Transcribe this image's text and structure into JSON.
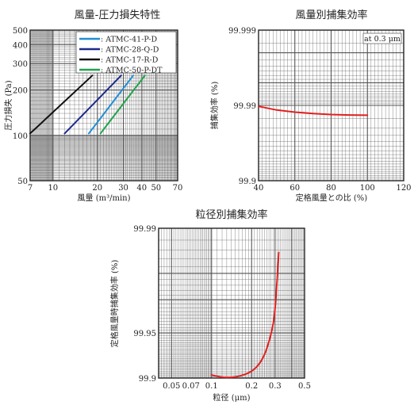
{
  "chart_data": [
    {
      "type": "line",
      "title": "風量-圧力損失特性",
      "xlabel": "風量 (m³/min)",
      "ylabel": "圧力損失 (Pa)",
      "x_scale": "log",
      "y_scale": "log",
      "xlim": [
        7,
        70
      ],
      "ylim": [
        50,
        500
      ],
      "x_ticks": [
        "7",
        "10",
        "20",
        "30",
        "40",
        "50",
        "70"
      ],
      "x_tick_values": [
        7,
        10,
        20,
        30,
        40,
        50,
        70
      ],
      "y_ticks": [
        "50",
        "100",
        "200",
        "300",
        "400",
        "500"
      ],
      "y_tick_values": [
        50,
        100,
        200,
        300,
        400,
        500
      ],
      "grid": true,
      "legend_position": "top-right",
      "series": [
        {
          "name": ": ATMC-41-P-D",
          "color": "#1e8fd6",
          "x": [
            17.5,
            35
          ],
          "y": [
            103,
            250
          ]
        },
        {
          "name": ": ATMC-28-Q-D",
          "color": "#1c2a8a",
          "x": [
            12,
            29
          ],
          "y": [
            103,
            250
          ]
        },
        {
          "name": ": ATMC-17-R-D",
          "color": "#111111",
          "x": [
            7,
            18.5
          ],
          "y": [
            103,
            250
          ]
        },
        {
          "name": ": ATMC-50-P-DT",
          "color": "#1fa34a",
          "x": [
            21,
            42
          ],
          "y": [
            103,
            250
          ]
        }
      ]
    },
    {
      "type": "line",
      "title": "風量別捕集効率",
      "xlabel": "定格風量との比 (%)",
      "ylabel": "捕集効率 (%)",
      "x_scale": "linear",
      "xlim": [
        40,
        120
      ],
      "ylim": [
        99.9,
        99.999
      ],
      "x_ticks": [
        "40",
        "60",
        "80",
        "100",
        "120"
      ],
      "x_tick_values": [
        40,
        60,
        80,
        100,
        120
      ],
      "y_ticks": [
        "99.999",
        "99.99",
        "99.9"
      ],
      "y_tick_values": [
        99.999,
        99.99,
        99.9
      ],
      "annotation": "at 0.3 μm",
      "grid": true,
      "series": [
        {
          "color": "#e02020",
          "x": [
            40,
            50,
            60,
            70,
            80,
            90,
            100
          ],
          "y": [
            99.9897,
            99.9885,
            99.9877,
            99.9872,
            99.9868,
            99.9866,
            99.9865
          ]
        }
      ]
    },
    {
      "type": "line",
      "title": "粒径別捕集効率",
      "xlabel": "粒径 (μm)",
      "ylabel": "定格風量時捕集効率 (%)",
      "x_scale": "log",
      "xlim": [
        0.04,
        0.5
      ],
      "ylim": [
        99.9,
        99.99
      ],
      "x_ticks": [
        "0.05",
        "0.07",
        "0.1",
        "0.2",
        "0.3",
        "0.5"
      ],
      "x_tick_values": [
        0.05,
        0.07,
        0.1,
        0.2,
        0.3,
        0.5
      ],
      "y_ticks": [
        "99.99",
        "99.95",
        "99.9"
      ],
      "y_tick_values": [
        99.99,
        99.95,
        99.9
      ],
      "grid": true,
      "series": [
        {
          "color": "#e02020",
          "x": [
            0.1,
            0.12,
            0.14,
            0.16,
            0.19,
            0.22,
            0.25,
            0.28,
            0.3,
            0.32
          ],
          "y": [
            99.9045,
            99.9015,
            99.9012,
            99.9028,
            99.9078,
            99.9165,
            99.9305,
            99.9495,
            99.9655,
            99.9855
          ]
        }
      ]
    }
  ]
}
